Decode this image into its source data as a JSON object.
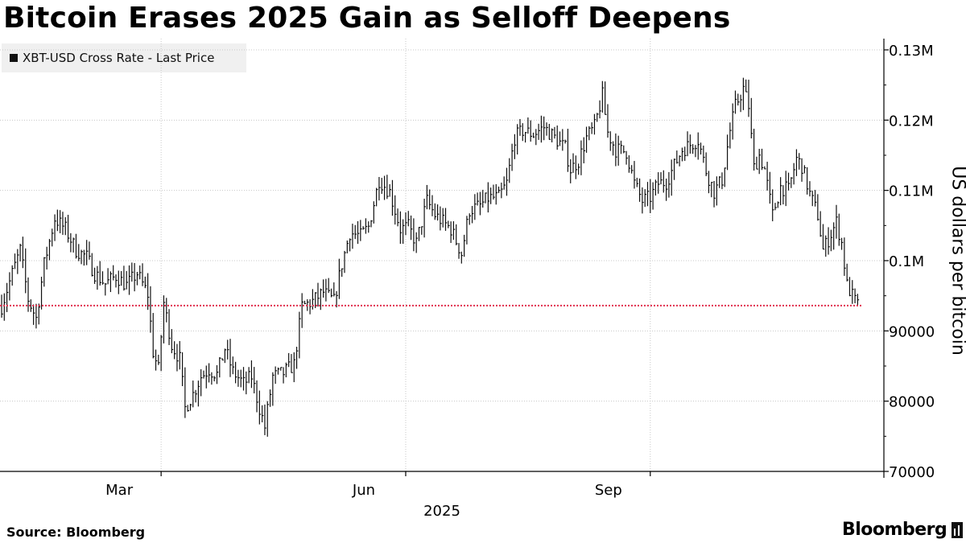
{
  "chart_data": {
    "type": "line",
    "title": "Bitcoin Erases 2025 Gain as Selloff Deepens",
    "ylabel": "US dollars per bitcoin",
    "ylim": [
      70000,
      130000
    ],
    "yticks": [
      {
        "value": 130000,
        "label": "0.13M"
      },
      {
        "value": 120000,
        "label": "0.12M"
      },
      {
        "value": 110000,
        "label": "0.11M"
      },
      {
        "value": 100000,
        "label": "0.1M"
      },
      {
        "value": 90000,
        "label": "90000"
      },
      {
        "value": 80000,
        "label": "80000"
      },
      {
        "value": 70000,
        "label": "70000"
      }
    ],
    "xlim": [
      "2024-12-31",
      "2025-11-20"
    ],
    "xticks": [
      {
        "date": "2025-03-01",
        "label": "Mar"
      },
      {
        "date": "2025-06-01",
        "label": "Jun"
      },
      {
        "date": "2025-09-01",
        "label": "Sep"
      }
    ],
    "year_label": "2025",
    "grid": true,
    "legend_position": "top-left",
    "reference_line": {
      "value": 93600,
      "style": "dotted",
      "color": "#e0304f"
    },
    "series": [
      {
        "name": "XBT-USD Cross Rate - Last Price",
        "color": "#111111",
        "points": [
          [
            "2024-12-31",
            93500
          ],
          [
            "2025-01-04",
            98200
          ],
          [
            "2025-01-07",
            101500
          ],
          [
            "2025-01-10",
            94500
          ],
          [
            "2025-01-13",
            91800
          ],
          [
            "2025-01-16",
            99500
          ],
          [
            "2025-01-20",
            106000
          ],
          [
            "2025-01-24",
            104500
          ],
          [
            "2025-01-28",
            101500
          ],
          [
            "2025-02-01",
            100500
          ],
          [
            "2025-02-04",
            98200
          ],
          [
            "2025-02-08",
            96700
          ],
          [
            "2025-02-12",
            97800
          ],
          [
            "2025-02-16",
            96500
          ],
          [
            "2025-02-20",
            98200
          ],
          [
            "2025-02-24",
            95200
          ],
          [
            "2025-02-26",
            87000
          ],
          [
            "2025-02-28",
            84500
          ],
          [
            "2025-03-02",
            94000
          ],
          [
            "2025-03-05",
            88000
          ],
          [
            "2025-03-08",
            86000
          ],
          [
            "2025-03-10",
            79000
          ],
          [
            "2025-03-13",
            81000
          ],
          [
            "2025-03-16",
            83500
          ],
          [
            "2025-03-19",
            84500
          ],
          [
            "2025-03-22",
            83800
          ],
          [
            "2025-03-25",
            87500
          ],
          [
            "2025-03-28",
            84200
          ],
          [
            "2025-04-01",
            82500
          ],
          [
            "2025-04-04",
            83500
          ],
          [
            "2025-04-07",
            79000
          ],
          [
            "2025-04-09",
            76300
          ],
          [
            "2025-04-12",
            83500
          ],
          [
            "2025-04-16",
            84000
          ],
          [
            "2025-04-20",
            85200
          ],
          [
            "2025-04-23",
            93500
          ],
          [
            "2025-04-27",
            94200
          ],
          [
            "2025-05-01",
            95500
          ],
          [
            "2025-05-05",
            94200
          ],
          [
            "2025-05-08",
            99500
          ],
          [
            "2025-05-11",
            104000
          ],
          [
            "2025-05-15",
            103500
          ],
          [
            "2025-05-18",
            104800
          ],
          [
            "2025-05-22",
            111500
          ],
          [
            "2025-05-26",
            109800
          ],
          [
            "2025-05-30",
            104500
          ],
          [
            "2025-06-02",
            104800
          ],
          [
            "2025-06-05",
            102500
          ],
          [
            "2025-06-09",
            108500
          ],
          [
            "2025-06-12",
            106500
          ],
          [
            "2025-06-15",
            105500
          ],
          [
            "2025-06-18",
            104500
          ],
          [
            "2025-06-22",
            101000
          ],
          [
            "2025-06-25",
            107200
          ],
          [
            "2025-06-29",
            107800
          ],
          [
            "2025-07-02",
            108900
          ],
          [
            "2025-07-06",
            109000
          ],
          [
            "2025-07-09",
            111000
          ],
          [
            "2025-07-12",
            117500
          ],
          [
            "2025-07-15",
            118500
          ],
          [
            "2025-07-19",
            118000
          ],
          [
            "2025-07-23",
            119000
          ],
          [
            "2025-07-27",
            117500
          ],
          [
            "2025-07-31",
            116000
          ],
          [
            "2025-08-02",
            113000
          ],
          [
            "2025-08-05",
            114200
          ],
          [
            "2025-08-08",
            117500
          ],
          [
            "2025-08-11",
            119000
          ],
          [
            "2025-08-14",
            123500
          ],
          [
            "2025-08-16",
            118200
          ],
          [
            "2025-08-19",
            115800
          ],
          [
            "2025-08-23",
            115500
          ],
          [
            "2025-08-26",
            111000
          ],
          [
            "2025-08-29",
            108500
          ],
          [
            "2025-09-01",
            109000
          ],
          [
            "2025-09-04",
            111000
          ],
          [
            "2025-09-07",
            111200
          ],
          [
            "2025-09-10",
            113500
          ],
          [
            "2025-09-13",
            115800
          ],
          [
            "2025-09-16",
            116500
          ],
          [
            "2025-09-19",
            117200
          ],
          [
            "2025-09-22",
            112800
          ],
          [
            "2025-09-25",
            109800
          ],
          [
            "2025-09-28",
            111500
          ],
          [
            "2025-10-01",
            118500
          ],
          [
            "2025-10-03",
            122000
          ],
          [
            "2025-10-06",
            124500
          ],
          [
            "2025-10-08",
            122000
          ],
          [
            "2025-10-10",
            113200
          ],
          [
            "2025-10-12",
            115000
          ],
          [
            "2025-10-14",
            113000
          ],
          [
            "2025-10-17",
            106500
          ],
          [
            "2025-10-20",
            110500
          ],
          [
            "2025-10-23",
            110000
          ],
          [
            "2025-10-26",
            114500
          ],
          [
            "2025-10-28",
            113500
          ],
          [
            "2025-10-31",
            109500
          ],
          [
            "2025-11-03",
            106500
          ],
          [
            "2025-11-05",
            101500
          ],
          [
            "2025-11-07",
            103000
          ],
          [
            "2025-11-10",
            105500
          ],
          [
            "2025-11-12",
            102500
          ],
          [
            "2025-11-14",
            96500
          ],
          [
            "2025-11-16",
            95000
          ],
          [
            "2025-11-18",
            93600
          ]
        ]
      }
    ],
    "source": "Source: Bloomberg",
    "brand": "Bloomberg"
  }
}
